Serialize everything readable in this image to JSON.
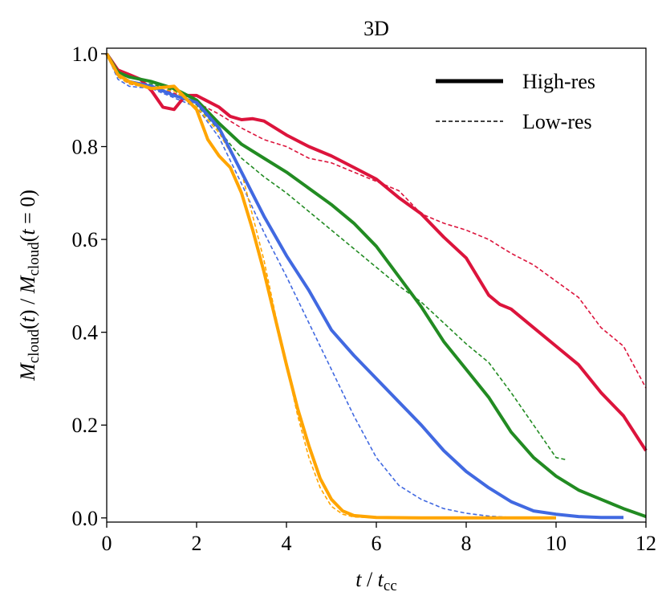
{
  "chart_data": {
    "type": "line",
    "title": "3D",
    "xlabel": [
      {
        "text": "t",
        "italic": true
      },
      {
        "text": " / "
      },
      {
        "text": "t",
        "italic": true
      },
      {
        "text": "cc",
        "sub": true
      }
    ],
    "ylabel": [
      {
        "text": "M",
        "italic": true
      },
      {
        "text": "cloud",
        "sub": true
      },
      {
        "text": "("
      },
      {
        "text": "t",
        "italic": true
      },
      {
        "text": ") / "
      },
      {
        "text": "M",
        "italic": true
      },
      {
        "text": "cloud",
        "sub": true
      },
      {
        "text": "("
      },
      {
        "text": "t",
        "italic": true
      },
      {
        "text": " = 0)"
      }
    ],
    "xlim": [
      0,
      12
    ],
    "xticks": [
      0,
      2,
      4,
      6,
      8,
      10,
      12
    ],
    "ylim": [
      -0.009,
      1.012
    ],
    "yticks": [
      {
        "value": 0,
        "label": "0.0"
      },
      {
        "value": 0.2,
        "label": "0.2"
      },
      {
        "value": 0.4,
        "label": "0.4"
      },
      {
        "value": 0.6,
        "label": "0.6"
      },
      {
        "value": 0.8,
        "label": "0.8"
      },
      {
        "value": 1.0,
        "label": "1.0"
      }
    ],
    "legend_position": "upper right",
    "legend": [
      {
        "label": "High-res",
        "style": "solid"
      },
      {
        "label": "Low-res",
        "style": "dashed"
      }
    ],
    "series": [
      {
        "color": "#dc143c",
        "style": "dashed",
        "x": [
          0,
          0.25,
          0.5,
          1,
          1.5,
          2,
          2.5,
          3,
          3.5,
          4,
          4.5,
          5,
          5.5,
          6,
          6.5,
          7,
          7.5,
          8,
          8.5,
          9,
          9.5,
          10,
          10.5,
          11,
          11.5,
          12
        ],
        "values": [
          1,
          0.955,
          0.935,
          0.93,
          0.915,
          0.895,
          0.87,
          0.84,
          0.815,
          0.8,
          0.775,
          0.765,
          0.745,
          0.725,
          0.705,
          0.655,
          0.635,
          0.62,
          0.6,
          0.57,
          0.545,
          0.51,
          0.475,
          0.41,
          0.37,
          0.28
        ]
      },
      {
        "color": "#228b22",
        "style": "dashed",
        "x": [
          0,
          0.25,
          0.5,
          1,
          1.5,
          2,
          2.5,
          3,
          3.5,
          4,
          4.5,
          5,
          5.5,
          6,
          6.5,
          7,
          7.5,
          8,
          8.5,
          9,
          9.5,
          10,
          10.25
        ],
        "values": [
          1,
          0.95,
          0.94,
          0.935,
          0.92,
          0.89,
          0.835,
          0.775,
          0.735,
          0.7,
          0.66,
          0.62,
          0.58,
          0.54,
          0.5,
          0.465,
          0.42,
          0.375,
          0.335,
          0.27,
          0.2,
          0.13,
          0.125
        ]
      },
      {
        "color": "#4169e1",
        "style": "dashed",
        "x": [
          0,
          0.25,
          0.5,
          1,
          1.5,
          2,
          2.5,
          3,
          3.5,
          4,
          4.5,
          5,
          5.5,
          6,
          6.5,
          7,
          7.5,
          8,
          8.5,
          9,
          10
        ],
        "values": [
          1,
          0.945,
          0.93,
          0.925,
          0.905,
          0.885,
          0.82,
          0.72,
          0.615,
          0.52,
          0.42,
          0.32,
          0.22,
          0.13,
          0.07,
          0.04,
          0.02,
          0.01,
          0.004,
          0.001,
          0
        ]
      },
      {
        "color": "#ffa500",
        "style": "dashed",
        "x": [
          0,
          0.25,
          0.5,
          1,
          1.5,
          2,
          2.5,
          3,
          3.25,
          3.5,
          3.75,
          4,
          4.25,
          4.5,
          4.75,
          5,
          5.25,
          5.5,
          6
        ],
        "values": [
          1,
          0.95,
          0.935,
          0.925,
          0.92,
          0.885,
          0.83,
          0.745,
          0.65,
          0.555,
          0.44,
          0.33,
          0.22,
          0.13,
          0.065,
          0.025,
          0.008,
          0.002,
          0
        ]
      },
      {
        "color": "#dc143c",
        "style": "solid",
        "x": [
          0,
          0.25,
          0.5,
          0.75,
          1,
          1.25,
          1.5,
          1.75,
          2,
          2.5,
          2.75,
          3,
          3.25,
          3.5,
          4,
          4.5,
          5,
          5.5,
          6,
          6.5,
          7,
          7.5,
          8,
          8.5,
          8.75,
          9,
          9.5,
          10,
          10.5,
          11,
          11.5,
          12
        ],
        "values": [
          1,
          0.965,
          0.955,
          0.945,
          0.92,
          0.885,
          0.88,
          0.91,
          0.91,
          0.885,
          0.865,
          0.858,
          0.86,
          0.855,
          0.825,
          0.8,
          0.78,
          0.755,
          0.73,
          0.69,
          0.655,
          0.605,
          0.56,
          0.48,
          0.46,
          0.45,
          0.41,
          0.37,
          0.33,
          0.27,
          0.22,
          0.145
        ]
      },
      {
        "color": "#228b22",
        "style": "solid",
        "x": [
          0,
          0.25,
          0.5,
          1,
          1.5,
          2,
          2.5,
          3,
          3.5,
          4,
          4.5,
          5,
          5.5,
          6,
          6.5,
          7,
          7.5,
          8,
          8.5,
          9,
          9.5,
          10,
          10.5,
          11,
          11.5,
          12
        ],
        "values": [
          1,
          0.96,
          0.95,
          0.94,
          0.925,
          0.9,
          0.85,
          0.805,
          0.775,
          0.745,
          0.71,
          0.675,
          0.635,
          0.585,
          0.52,
          0.455,
          0.38,
          0.32,
          0.26,
          0.185,
          0.13,
          0.09,
          0.06,
          0.04,
          0.02,
          0.003
        ]
      },
      {
        "color": "#4169e1",
        "style": "solid",
        "x": [
          0,
          0.25,
          0.5,
          1,
          1.5,
          2,
          2.5,
          3,
          3.5,
          4,
          4.5,
          5,
          5.5,
          6,
          6.5,
          7,
          7.5,
          8,
          8.5,
          9,
          9.5,
          10,
          10.5,
          11,
          11.5
        ],
        "values": [
          1,
          0.955,
          0.94,
          0.93,
          0.91,
          0.895,
          0.84,
          0.745,
          0.65,
          0.565,
          0.49,
          0.405,
          0.35,
          0.3,
          0.25,
          0.2,
          0.145,
          0.1,
          0.065,
          0.035,
          0.015,
          0.008,
          0.003,
          0.001,
          0.001
        ]
      },
      {
        "color": "#ffa500",
        "style": "solid",
        "x": [
          0,
          0.25,
          0.5,
          1,
          1.5,
          2,
          2.25,
          2.5,
          2.75,
          3,
          3.25,
          3.5,
          3.75,
          4,
          4.25,
          4.5,
          4.75,
          5,
          5.25,
          5.5,
          6,
          7,
          8,
          9,
          10
        ],
        "values": [
          1,
          0.955,
          0.94,
          0.925,
          0.93,
          0.88,
          0.815,
          0.78,
          0.755,
          0.7,
          0.62,
          0.53,
          0.43,
          0.33,
          0.235,
          0.155,
          0.085,
          0.04,
          0.015,
          0.005,
          0.001,
          0,
          0,
          0,
          0
        ]
      }
    ]
  }
}
